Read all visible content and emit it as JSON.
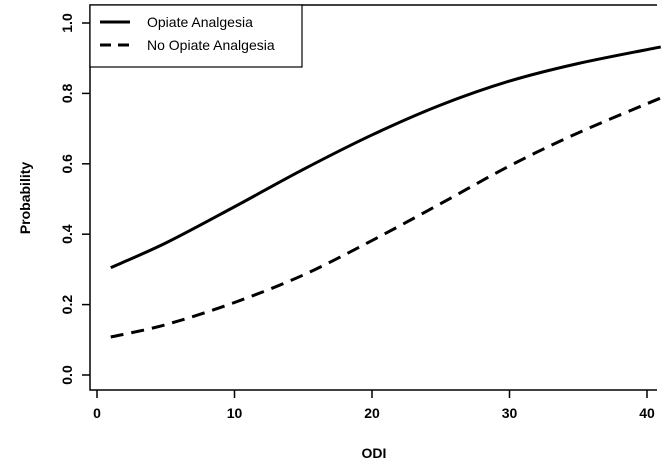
{
  "chart_data": {
    "type": "line",
    "title": "",
    "xlabel": "ODI",
    "ylabel": "Probability",
    "xlim": [
      0,
      41
    ],
    "ylim": [
      0,
      1
    ],
    "x_ticks": [
      "0",
      "10",
      "20",
      "30",
      "40"
    ],
    "y_ticks": [
      "0.0",
      "0.2",
      "0.4",
      "0.6",
      "0.8",
      "1.0"
    ],
    "grid": false,
    "legend_position": "top-left",
    "series": [
      {
        "name": "Opiate Analgesia",
        "line_style": "solid",
        "color": "#000000",
        "x": [
          1,
          5,
          10,
          15,
          20,
          25,
          30,
          35,
          41
        ],
        "y": [
          0.305,
          0.375,
          0.478,
          0.584,
          0.682,
          0.767,
          0.835,
          0.885,
          0.932
        ]
      },
      {
        "name": "No Opiate Analgesia",
        "line_style": "dashed",
        "color": "#000000",
        "x": [
          1,
          5,
          10,
          15,
          20,
          25,
          30,
          35,
          41
        ],
        "y": [
          0.108,
          0.143,
          0.206,
          0.284,
          0.382,
          0.487,
          0.594,
          0.688,
          0.787
        ]
      }
    ]
  }
}
